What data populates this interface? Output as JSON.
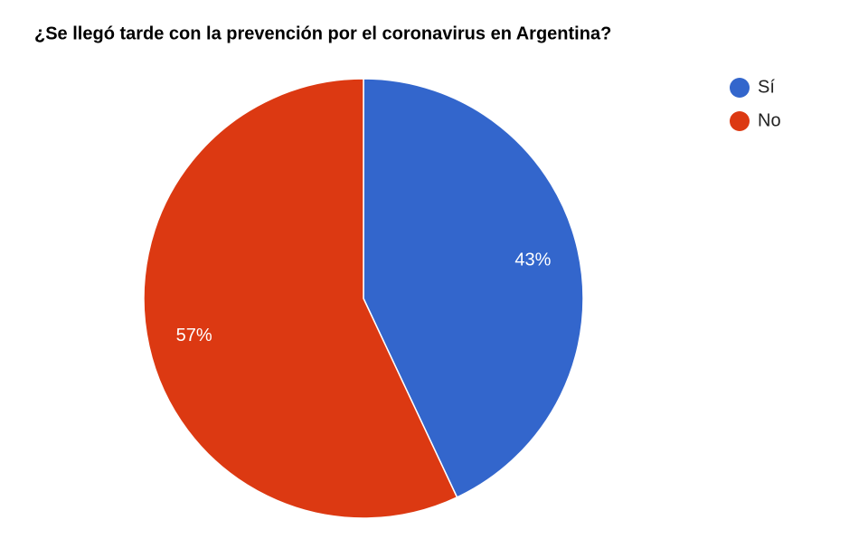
{
  "chart_data": {
    "type": "pie",
    "title": "¿Se llegó tarde con la prevención por el coronavirus en Argentina?",
    "categories": [
      "Sí",
      "No"
    ],
    "values": [
      43,
      57
    ],
    "value_labels": [
      "43%",
      "57%"
    ],
    "colors": [
      "#3366cc",
      "#dc3912"
    ],
    "legend": "top-right"
  }
}
